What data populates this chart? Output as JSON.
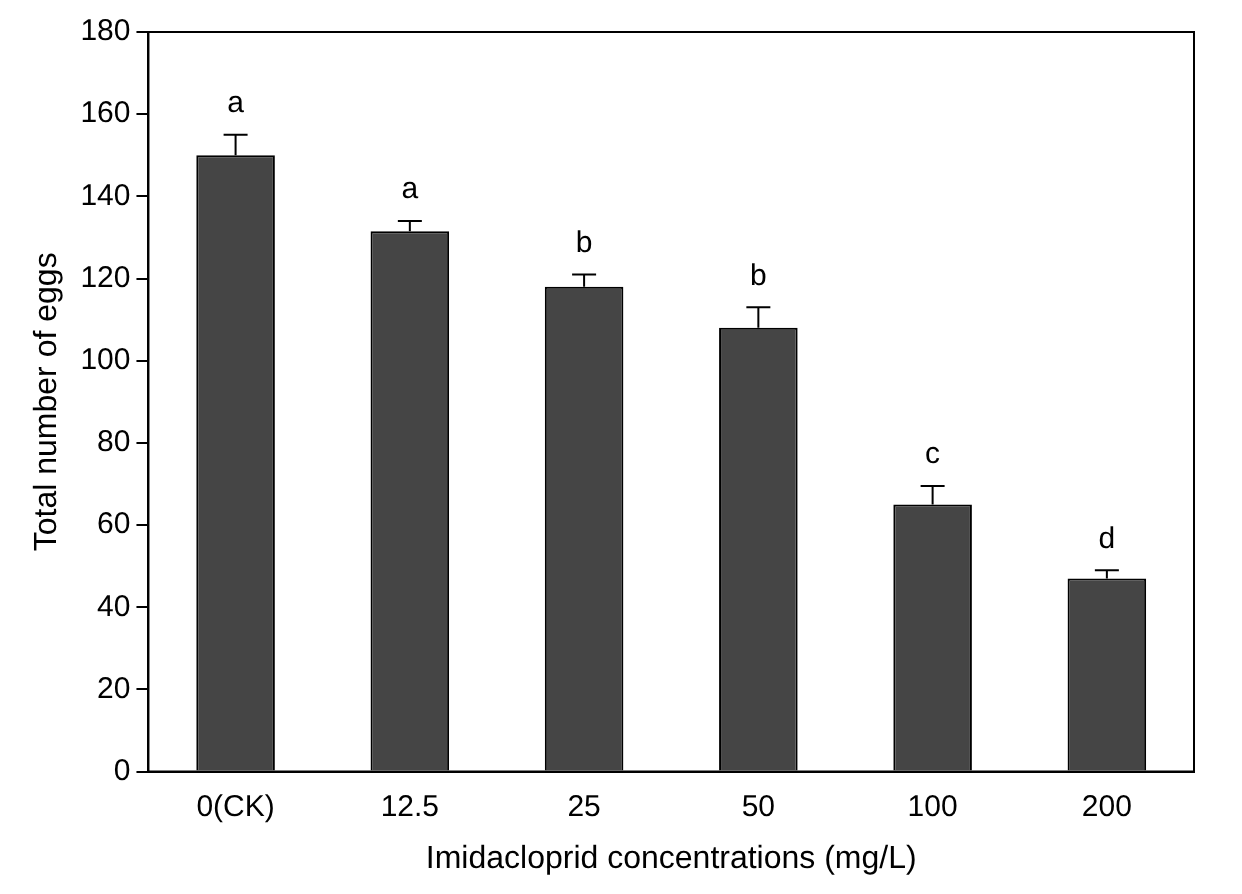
{
  "chart_data": {
    "type": "bar",
    "xlabel": "Imidacloprid concentrations (mg/L)",
    "ylabel": "Total number of eggs",
    "categories": [
      "0(CK)",
      "12.5",
      "25",
      "50",
      "100",
      "200"
    ],
    "values": [
      150,
      131.5,
      118,
      108,
      65,
      47
    ],
    "errors": [
      [
        150,
        155
      ],
      [
        131.5,
        134
      ],
      [
        118,
        121
      ],
      [
        108,
        113
      ],
      [
        65,
        69.5
      ],
      [
        47,
        49
      ]
    ],
    "color": "#454545",
    "ylim": [
      0,
      180
    ],
    "yticks": [
      0,
      20,
      40,
      60,
      80,
      100,
      120,
      140,
      160,
      180
    ],
    "grid": false,
    "annotations": [
      "a",
      "a",
      "b",
      "b",
      "c",
      "d"
    ]
  }
}
